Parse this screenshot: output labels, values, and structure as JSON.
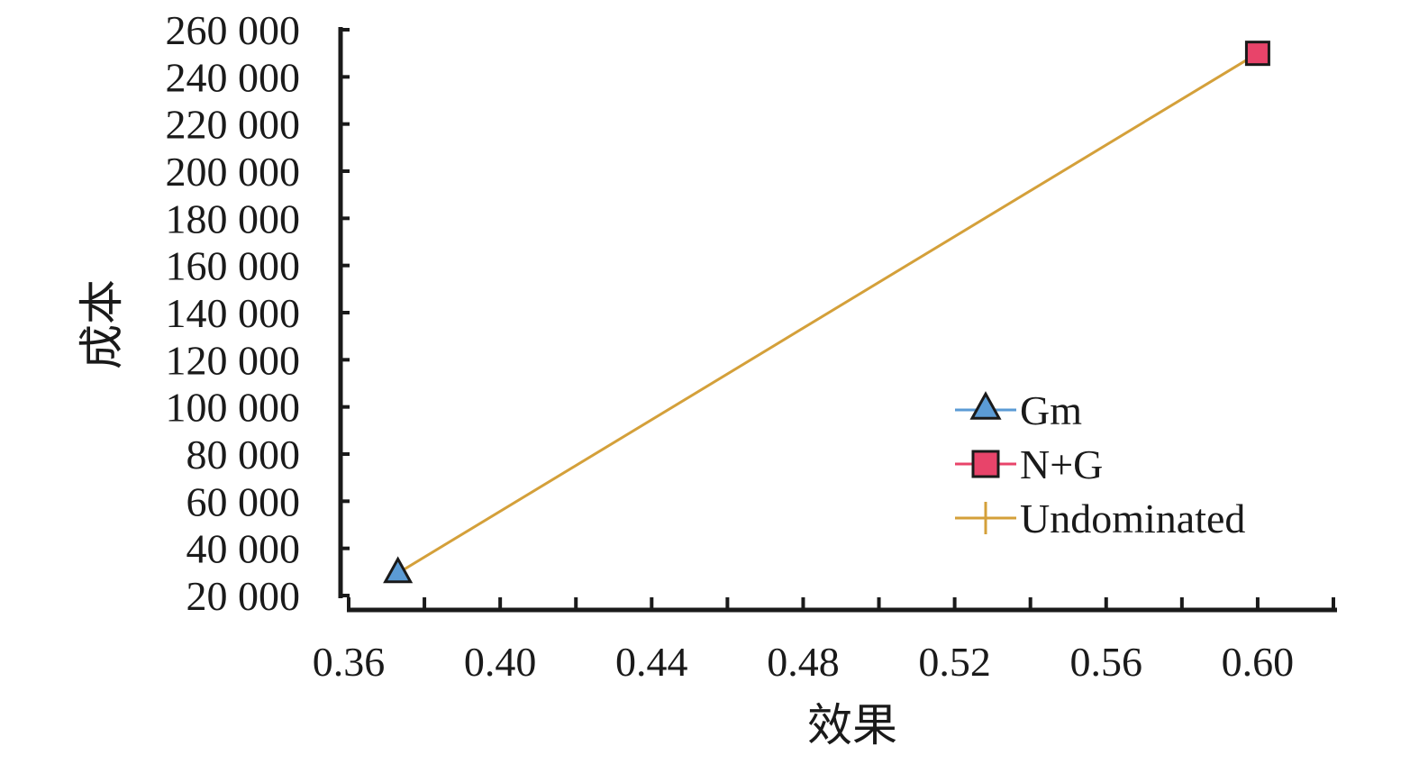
{
  "chart_data": {
    "type": "line",
    "xlabel": "效果",
    "ylabel": "成本",
    "xlim": [
      0.36,
      0.62
    ],
    "ylim": [
      20000,
      260000
    ],
    "x_ticks": [
      0.36,
      0.4,
      0.44,
      0.48,
      0.52,
      0.56,
      0.6
    ],
    "x_tick_labels": [
      "0.36",
      "0.40",
      "0.44",
      "0.48",
      "0.52",
      "0.56",
      "0.60"
    ],
    "y_ticks": [
      20000,
      40000,
      60000,
      80000,
      100000,
      120000,
      140000,
      160000,
      180000,
      200000,
      220000,
      240000,
      260000
    ],
    "y_tick_labels": [
      "20 000",
      "40 000",
      "60 000",
      "80 000",
      "100 000",
      "120 000",
      "140 000",
      "160 000",
      "180 000",
      "200 000",
      "220 000",
      "240 000",
      "260 000"
    ],
    "grid": false,
    "legend_position": "right",
    "series": [
      {
        "name": "Gm",
        "marker": "triangle",
        "color": "#5b9bd5",
        "points": [
          [
            0.373,
            29500
          ]
        ]
      },
      {
        "name": "N+G",
        "marker": "square",
        "color": "#e8446a",
        "points": [
          [
            0.6,
            250000
          ]
        ]
      },
      {
        "name": "Undominated",
        "marker": "line",
        "color": "#d4a03a",
        "points": [
          [
            0.373,
            29500
          ],
          [
            0.6,
            250000
          ]
        ]
      }
    ]
  }
}
